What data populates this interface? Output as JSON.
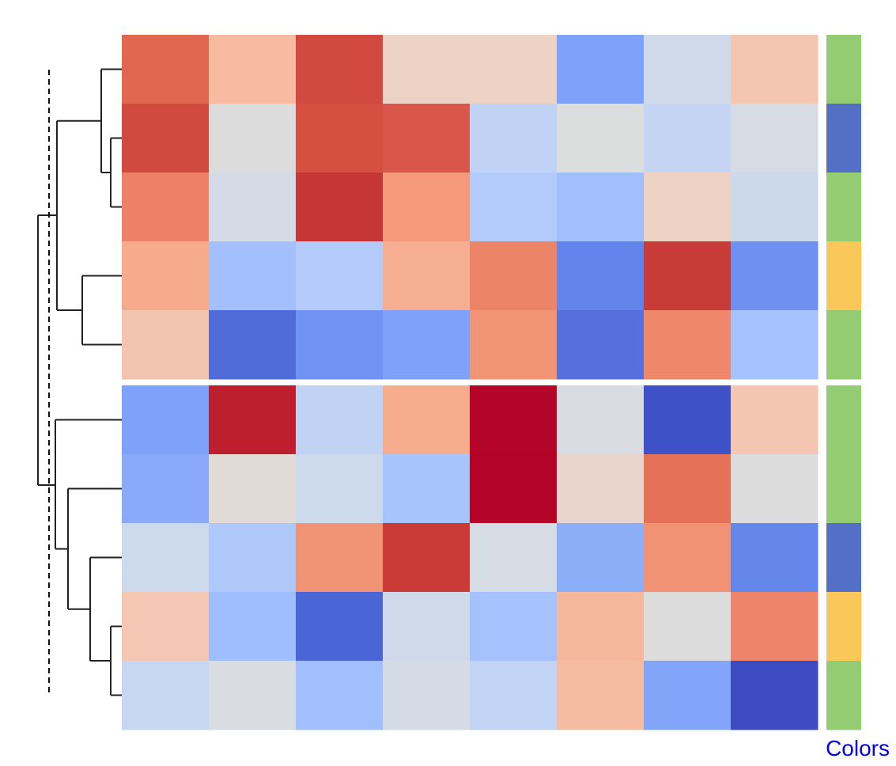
{
  "chart_data": {
    "type": "heatmap",
    "title": "",
    "xlabel": "",
    "ylabel": "",
    "row_split_after": 5,
    "colors_label": "Colors",
    "row_colors": [
      "#94cc74",
      "#546fc6",
      "#94cc74",
      "#fac858",
      "#94cc74",
      "#94cc74",
      "#94cc74",
      "#546fc6",
      "#fac858",
      "#94cc74"
    ],
    "cells": [
      [
        "#e16751",
        "#f6bba0",
        "#d1493f",
        "#ecd3c5",
        "#ecd3c5",
        "#7ea1f9",
        "#cfd9e9",
        "#f4c6b1"
      ],
      [
        "#d1493f",
        "#dcdcdc",
        "#d5503f",
        "#d9564a",
        "#c0d3f5",
        "#dcdddd",
        "#c5d4f2",
        "#d6dbe4"
      ],
      [
        "#ef8068",
        "#d4dbe6",
        "#c63636",
        "#f49a7b",
        "#b2cbfb",
        "#a0bffc",
        "#edd1c2",
        "#ccd9ed"
      ],
      [
        "#f6ab8d",
        "#a3c0fd",
        "#b4cbfa",
        "#f5ae91",
        "#ec8467",
        "#6384eb",
        "#c83c38",
        "#6e90f0"
      ],
      [
        "#f3c5b0",
        "#506cd9",
        "#7093f3",
        "#7ea1f9",
        "#f29575",
        "#566fdc",
        "#ef876b",
        "#a5c2fe"
      ],
      [
        "#7ea1f9",
        "#bd1f2e",
        "#c0d3f5",
        "#f5ad8e",
        "#b40427",
        "#d8dce2",
        "#3e51c6",
        "#f4c6b1"
      ],
      [
        "#8aa9f9",
        "#e2dad5",
        "#cdd9ec",
        "#a7c4fd",
        "#b30326",
        "#e9d5cb",
        "#e57058",
        "#dddcdc"
      ],
      [
        "#cdd9ec",
        "#afc8fc",
        "#f19475",
        "#ca3b37",
        "#d6dce4",
        "#8caef9",
        "#f29274",
        "#6587ec"
      ],
      [
        "#f3c7b3",
        "#9ebefe",
        "#4b64d6",
        "#cfd9ea",
        "#a5c2fe",
        "#f5b89d",
        "#dcdcdc",
        "#ee846a"
      ],
      [
        "#c7d6f1",
        "#d9dce1",
        "#a0bffc",
        "#d5dbe5",
        "#c1d4f4",
        "#f6bca1",
        "#83a5f9",
        "#3c4bc0"
      ]
    ]
  }
}
